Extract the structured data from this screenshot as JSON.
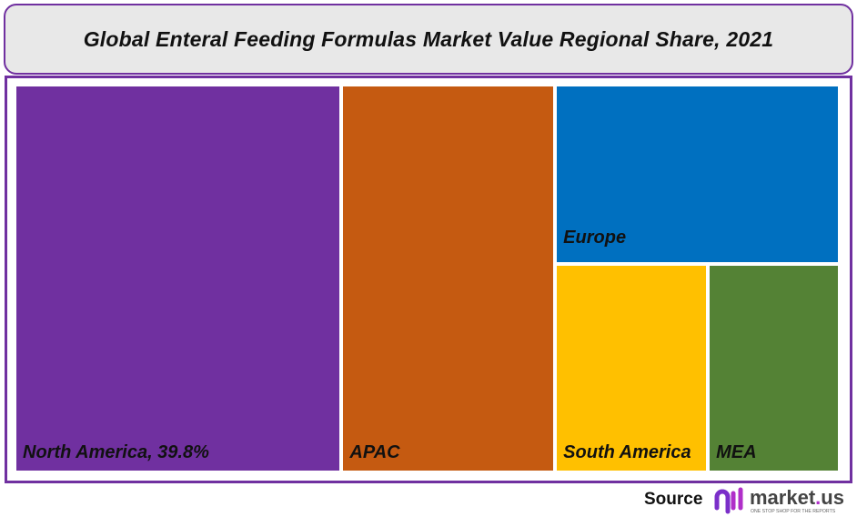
{
  "chart_data": {
    "type": "treemap",
    "title": "Global Enteral Feeding Formulas Market Value Regional Share, 2021",
    "unit": "%",
    "items": [
      {
        "name": "North America",
        "label": "North America, 39.8%",
        "value": 39.8,
        "color": "#7030a0"
      },
      {
        "name": "APAC",
        "label": "APAC",
        "value": 26.0,
        "color": "#c55a11"
      },
      {
        "name": "Europe",
        "label": "Europe",
        "value": 16.0,
        "color": "#0070c0"
      },
      {
        "name": "South America",
        "label": "South America",
        "value": 9.9,
        "color": "#ffc000"
      },
      {
        "name": "MEA",
        "label": "MEA",
        "value": 8.3,
        "color": "#548235"
      }
    ]
  },
  "footer": {
    "source_label": "Source",
    "logo_text": "market.us",
    "logo_tagline": "ONE STOP SHOP FOR THE REPORTS"
  },
  "colors": {
    "border": "#7030a0",
    "title_bg": "#e8e8e8"
  }
}
